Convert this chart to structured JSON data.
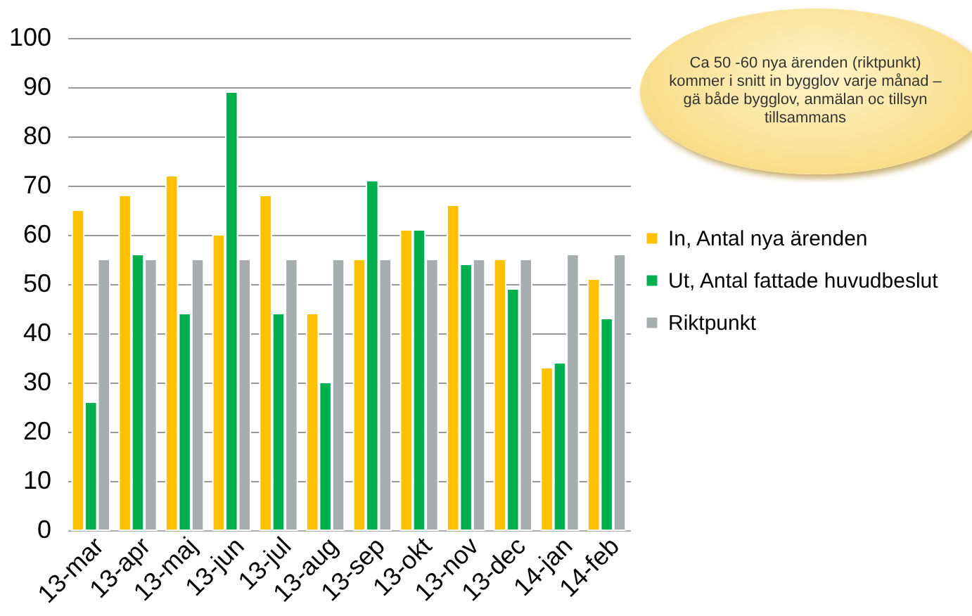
{
  "chart_data": {
    "type": "bar",
    "categories": [
      "13-mar",
      "13-apr",
      "13-maj",
      "13-jun",
      "13-jul",
      "13-aug",
      "13-sep",
      "13-okt",
      "13-nov",
      "13-dec",
      "14-jan",
      "14-feb"
    ],
    "series": [
      {
        "name": "In, Antal nya ärenden",
        "color": "#ffc000",
        "values": [
          65,
          68,
          72,
          60,
          68,
          44,
          55,
          61,
          66,
          55,
          33,
          51
        ]
      },
      {
        "name": "Ut, Antal fattade huvudbeslut",
        "color": "#00b050",
        "values": [
          26,
          56,
          44,
          89,
          44,
          30,
          71,
          61,
          54,
          49,
          34,
          43
        ]
      },
      {
        "name": "Riktpunkt",
        "color": "#a6aeb0",
        "values": [
          55,
          55,
          55,
          55,
          55,
          55,
          55,
          55,
          55,
          55,
          56,
          56
        ]
      }
    ],
    "ylim": [
      0,
      100
    ],
    "yticks": [
      0,
      10,
      20,
      30,
      40,
      50,
      60,
      70,
      80,
      90,
      100
    ],
    "grid": "y",
    "legend": "right",
    "annotations": [
      "Ca 50 -60 nya ärenden (riktpunkt) kommer i snitt in bygglov  varje månad – gä både bygglov, anmälan oc tillsyn tillsammans"
    ]
  }
}
